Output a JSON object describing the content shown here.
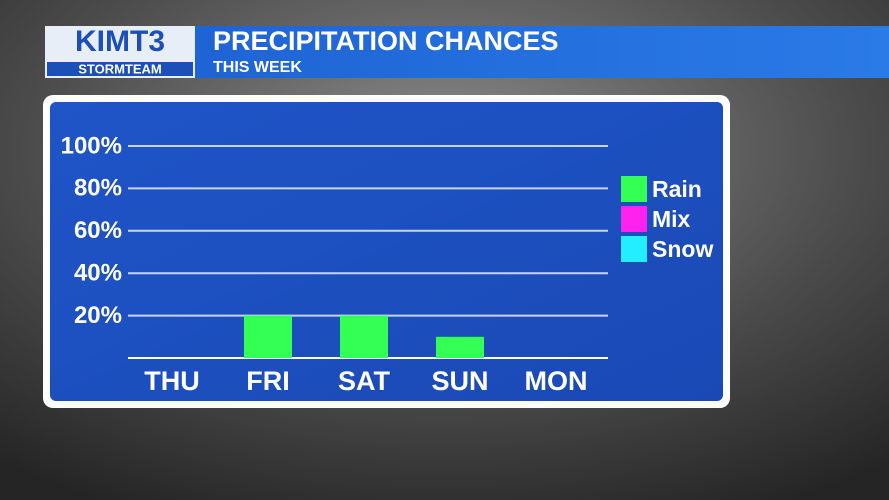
{
  "header": {
    "logo": "KIMT3",
    "logo_sub": "STORMTEAM",
    "title": "PRECIPITATION CHANCES",
    "subtitle": "THIS WEEK"
  },
  "chart_data": {
    "type": "bar",
    "categories": [
      "THU",
      "FRI",
      "SAT",
      "SUN",
      "MON"
    ],
    "series": [
      {
        "name": "Rain",
        "color": "#33ff55",
        "values": [
          0,
          20,
          20,
          10,
          0
        ]
      },
      {
        "name": "Mix",
        "color": "#ff22ee",
        "values": [
          0,
          0,
          0,
          0,
          0
        ]
      },
      {
        "name": "Snow",
        "color": "#22eeff",
        "values": [
          0,
          0,
          0,
          0,
          0
        ]
      }
    ],
    "ylim": [
      0,
      100
    ],
    "yticks": [
      {
        "value": 20,
        "label": "20%"
      },
      {
        "value": 40,
        "label": "40%"
      },
      {
        "value": 60,
        "label": "60%"
      },
      {
        "value": 80,
        "label": "80%"
      },
      {
        "value": 100,
        "label": "100%"
      }
    ],
    "grid": true,
    "legend": "right"
  }
}
